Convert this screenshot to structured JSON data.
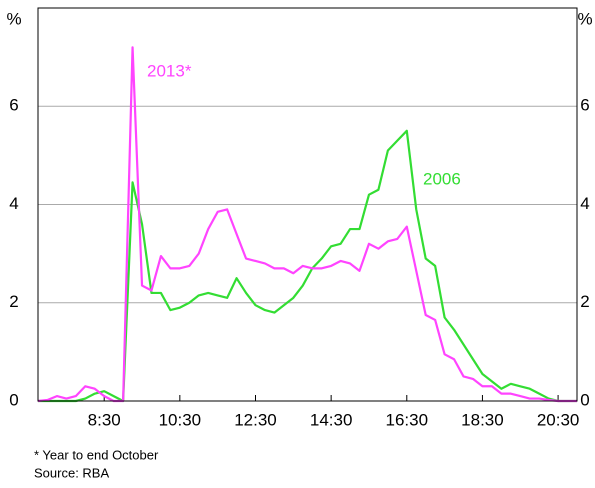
{
  "chart_data": {
    "type": "line",
    "x": [
      6.75,
      7,
      7.25,
      7.5,
      7.75,
      8,
      8.25,
      8.5,
      8.75,
      9,
      9.25,
      9.5,
      9.75,
      10,
      10.25,
      10.5,
      10.75,
      11,
      11.25,
      11.5,
      11.75,
      12,
      12.25,
      12.5,
      12.75,
      13,
      13.25,
      13.5,
      13.75,
      14,
      14.25,
      14.5,
      14.75,
      15,
      15.25,
      15.5,
      15.75,
      16,
      16.25,
      16.5,
      16.75,
      17,
      17.25,
      17.5,
      17.75,
      18,
      18.25,
      18.5,
      18.75,
      19,
      19.25,
      19.5,
      19.75,
      20,
      20.25,
      20.5,
      20.75,
      21
    ],
    "series": [
      {
        "name": "2006",
        "color": "#33dd33",
        "values": [
          0,
          0,
          0,
          0,
          0,
          0.05,
          0.15,
          0.2,
          0.1,
          0,
          4.45,
          3.6,
          2.2,
          2.2,
          1.85,
          1.9,
          2.0,
          2.15,
          2.2,
          2.15,
          2.1,
          2.5,
          2.2,
          1.95,
          1.85,
          1.8,
          1.95,
          2.1,
          2.35,
          2.7,
          2.9,
          3.15,
          3.2,
          3.5,
          3.5,
          4.2,
          4.3,
          5.1,
          5.3,
          5.5,
          3.9,
          2.9,
          2.75,
          1.7,
          1.45,
          1.15,
          0.85,
          0.55,
          0.4,
          0.25,
          0.35,
          0.3,
          0.25,
          0.15,
          0.05,
          0,
          0,
          0
        ]
      },
      {
        "name": "2013*",
        "color": "#ff44ff",
        "values": [
          0,
          0.02,
          0.1,
          0.05,
          0.1,
          0.3,
          0.25,
          0.1,
          0,
          0,
          7.2,
          2.35,
          2.25,
          2.95,
          2.7,
          2.7,
          2.75,
          3.0,
          3.5,
          3.85,
          3.9,
          3.4,
          2.9,
          2.85,
          2.8,
          2.7,
          2.7,
          2.6,
          2.75,
          2.7,
          2.7,
          2.75,
          2.85,
          2.8,
          2.65,
          3.2,
          3.1,
          3.25,
          3.3,
          3.55,
          2.65,
          1.75,
          1.65,
          0.95,
          0.85,
          0.5,
          0.45,
          0.3,
          0.3,
          0.15,
          0.15,
          0.1,
          0.05,
          0.05,
          0.02,
          0,
          0,
          0
        ]
      }
    ],
    "xlim": [
      6.75,
      21
    ],
    "xticks": [
      {
        "value": 8.5,
        "label": "8:30"
      },
      {
        "value": 10.5,
        "label": "10:30"
      },
      {
        "value": 12.5,
        "label": "12:30"
      },
      {
        "value": 14.5,
        "label": "14:30"
      },
      {
        "value": 16.5,
        "label": "16:30"
      },
      {
        "value": 18.5,
        "label": "18:30"
      },
      {
        "value": 20.5,
        "label": "20:30"
      }
    ],
    "ylim": [
      0,
      8
    ],
    "yticks": [
      0,
      2,
      4,
      6
    ],
    "y_unit": "%",
    "y2_unit": "%",
    "grid": true,
    "footnote": "*   Year to end October",
    "source": "Source: RBA"
  }
}
